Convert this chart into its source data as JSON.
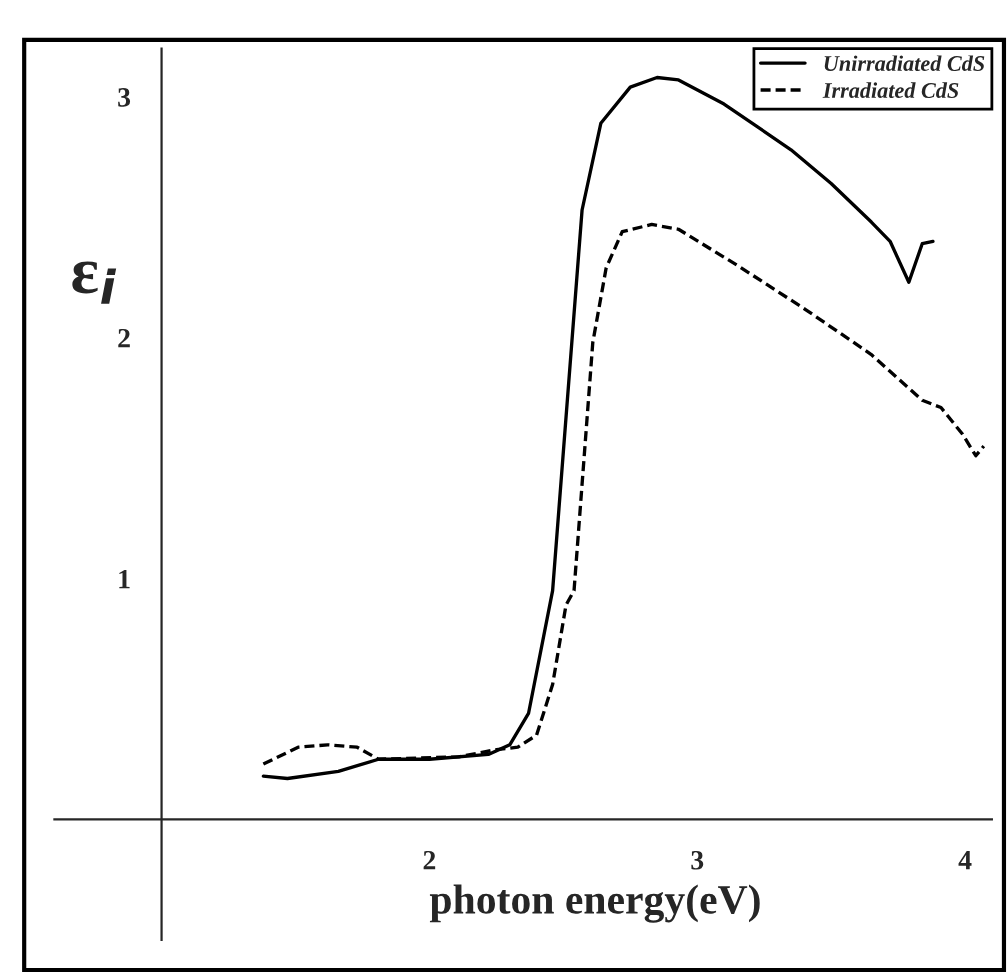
{
  "chart_data": {
    "type": "line",
    "xlabel": "photon energy(eV)",
    "ylabel": "ε$_{i}$",
    "xlim": [
      0.6,
      4.1
    ],
    "ylim": [
      -0.5,
      3.2
    ],
    "xticks": [
      2,
      3,
      4
    ],
    "yticks": [
      1,
      2,
      3
    ],
    "grid": false,
    "legend": "top right",
    "marker": "none",
    "series": [
      {
        "name": "Unirradiated CdS",
        "color": "#000000",
        "line_style": "solid",
        "x": [
          1.38,
          1.47,
          1.66,
          1.81,
          2.0,
          2.22,
          2.3,
          2.37,
          2.46,
          2.57,
          2.64,
          2.75,
          2.85,
          2.93,
          3.1,
          3.35,
          3.5,
          3.65,
          3.72,
          3.79,
          3.84,
          3.88
        ],
        "values": [
          0.18,
          0.17,
          0.2,
          0.25,
          0.25,
          0.27,
          0.31,
          0.44,
          0.95,
          2.53,
          2.89,
          3.04,
          3.08,
          3.07,
          2.97,
          2.78,
          2.64,
          2.48,
          2.4,
          2.23,
          2.39,
          2.4
        ]
      },
      {
        "name": "Irradiated CdS",
        "color": "#000000",
        "line_style": "dashed",
        "x": [
          1.38,
          1.51,
          1.62,
          1.73,
          1.81,
          2.11,
          2.25,
          2.33,
          2.4,
          2.46,
          2.51,
          2.54,
          2.61,
          2.66,
          2.72,
          2.83,
          2.93,
          3.15,
          3.4,
          3.65,
          3.84,
          3.91,
          3.99,
          4.04,
          4.07
        ],
        "values": [
          0.23,
          0.3,
          0.31,
          0.3,
          0.25,
          0.26,
          0.29,
          0.3,
          0.35,
          0.56,
          0.89,
          0.95,
          1.98,
          2.29,
          2.44,
          2.47,
          2.45,
          2.3,
          2.12,
          1.93,
          1.74,
          1.71,
          1.6,
          1.51,
          1.55
        ]
      }
    ]
  }
}
